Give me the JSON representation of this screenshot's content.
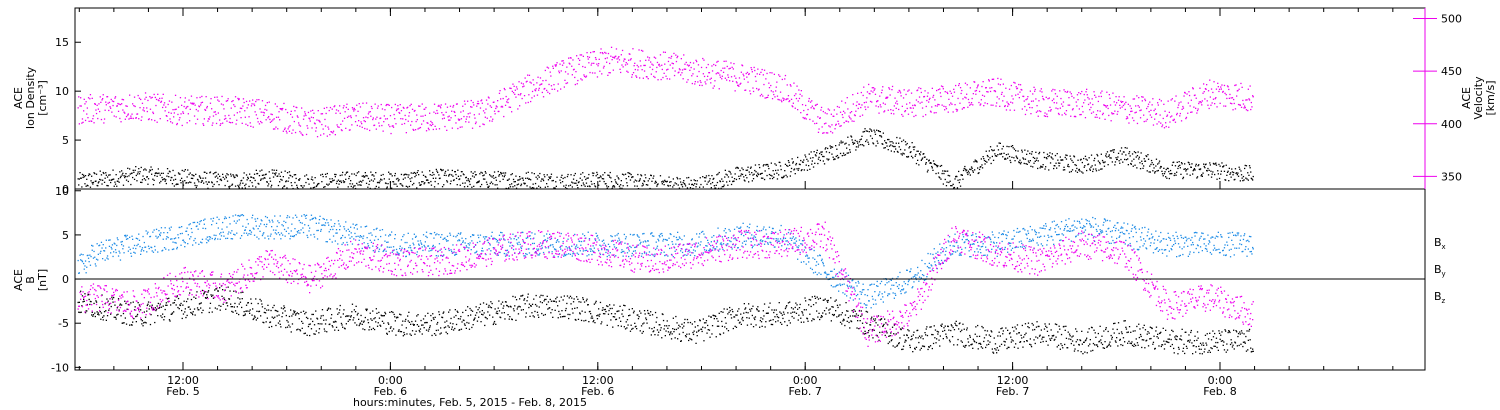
{
  "chart_data": [
    {
      "type": "scatter",
      "panel": "ion-density-velocity",
      "left_axis_label_lines": [
        "ACE",
        "Ion Density",
        "[cm⁻³]"
      ],
      "right_axis_label_lines": [
        "ACE",
        "Velocity",
        "[km/s]"
      ],
      "ylim_left": [
        0,
        18.5
      ],
      "ylim_right": [
        338,
        510
      ],
      "yticks_left": [
        0,
        5,
        10,
        15
      ],
      "yticks_right": [
        350,
        400,
        450,
        500
      ],
      "grid": false,
      "series": [
        {
          "axis": "left",
          "color": "#000000",
          "x_hours": [
            0,
            4,
            8,
            12,
            16,
            20,
            24,
            28,
            32,
            36,
            40,
            44,
            48,
            52,
            56,
            60,
            64,
            68,
            72,
            76,
            80,
            84,
            88,
            92,
            96,
            100,
            104,
            108,
            112,
            116
          ],
          "values": [
            0.8,
            0.6,
            1.0,
            1.5,
            1.2,
            0.8,
            1.2,
            0.7,
            1.0,
            0.9,
            1.2,
            1.0,
            1.0,
            0.8,
            1.0,
            0.6,
            0.4,
            1.5,
            2.0,
            3.5,
            5.5,
            4.0,
            0.6,
            4.0,
            3.0,
            2.5,
            3.5,
            2.0,
            2.0,
            1.5
          ]
        },
        {
          "axis": "right",
          "color": "#ee00ee",
          "x_hours": [
            0,
            4,
            8,
            12,
            16,
            20,
            24,
            28,
            32,
            36,
            40,
            44,
            48,
            52,
            56,
            60,
            64,
            68,
            72,
            76,
            80,
            84,
            88,
            92,
            96,
            100,
            104,
            108,
            112,
            116
          ],
          "values": [
            415,
            412,
            415,
            417,
            413,
            413,
            410,
            400,
            407,
            405,
            407,
            410,
            432,
            450,
            460,
            457,
            450,
            445,
            435,
            400,
            425,
            420,
            425,
            430,
            420,
            420,
            415,
            410,
            430,
            425
          ]
        }
      ]
    },
    {
      "type": "scatter",
      "panel": "magnetic-field",
      "left_axis_label_lines": [
        "ACE",
        "B",
        "[nT]"
      ],
      "ylim": [
        -10.3,
        10.2
      ],
      "yticks": [
        -10,
        -5,
        0,
        5,
        10
      ],
      "zero_line": true,
      "grid": false,
      "xticks": [
        {
          "hour": 6,
          "time": "12:00",
          "date": "Feb. 5"
        },
        {
          "hour": 18,
          "time": "0:00",
          "date": "Feb. 6"
        },
        {
          "hour": 30,
          "time": "12:00",
          "date": "Feb. 6"
        },
        {
          "hour": 42,
          "time": "0:00",
          "date": "Feb. 7"
        },
        {
          "hour": 54,
          "time": "12:00",
          "date": "Feb. 7"
        },
        {
          "hour": 66,
          "time": "0:00",
          "date": "Feb. 8"
        }
      ],
      "xlabel": "hours:minutes, Feb.  5, 2015 - Feb.  8, 2015",
      "legend": [
        {
          "base": "B",
          "sub": "x",
          "color": "#000000"
        },
        {
          "base": "B",
          "sub": "y",
          "color": "#1e8ce6"
        },
        {
          "base": "B",
          "sub": "z",
          "color": "#ee00ee"
        }
      ],
      "series": [
        {
          "label": "Bx",
          "color": "#000000",
          "x_hours": [
            0,
            4,
            8,
            12,
            16,
            20,
            24,
            28,
            32,
            36,
            40,
            44,
            48,
            52,
            56,
            60,
            64,
            68,
            72,
            76,
            80,
            84,
            88,
            92,
            96,
            100,
            104,
            108,
            112,
            116
          ],
          "values": [
            -1,
            -2,
            -3,
            -4,
            -3,
            -2,
            -4,
            -5,
            -4,
            -5,
            -5,
            -4,
            -3,
            -3,
            -4,
            -5,
            -6,
            -4,
            -4,
            -3,
            -5,
            -7,
            -6,
            -7,
            -6,
            -7,
            -6,
            -7,
            -7,
            -7
          ]
        },
        {
          "label": "By",
          "color": "#1e8ce6",
          "x_hours": [
            0,
            4,
            8,
            12,
            16,
            20,
            24,
            28,
            32,
            36,
            40,
            44,
            48,
            52,
            56,
            60,
            64,
            68,
            72,
            76,
            80,
            84,
            88,
            92,
            96,
            100,
            104,
            108,
            112,
            116
          ],
          "values": [
            -2,
            -1,
            3,
            4,
            5,
            6,
            6,
            6,
            5,
            4,
            4,
            4,
            4,
            4,
            4,
            4,
            4,
            5,
            5,
            1,
            -2,
            0,
            4,
            4,
            5,
            6,
            5,
            4,
            4,
            4
          ]
        },
        {
          "label": "Bz",
          "color": "#ee00ee",
          "x_hours": [
            0,
            4,
            8,
            12,
            16,
            20,
            24,
            28,
            32,
            36,
            40,
            44,
            48,
            52,
            56,
            60,
            64,
            68,
            72,
            76,
            80,
            84,
            88,
            92,
            96,
            100,
            104,
            108,
            112,
            116
          ],
          "values": [
            -1,
            -3,
            -2,
            -3,
            0,
            -1,
            2,
            0,
            3,
            2,
            2,
            3,
            4,
            4,
            3,
            2,
            3,
            4,
            4,
            5,
            -6,
            -4,
            5,
            3,
            2,
            4,
            3,
            -3,
            -2,
            -4
          ]
        }
      ]
    }
  ]
}
